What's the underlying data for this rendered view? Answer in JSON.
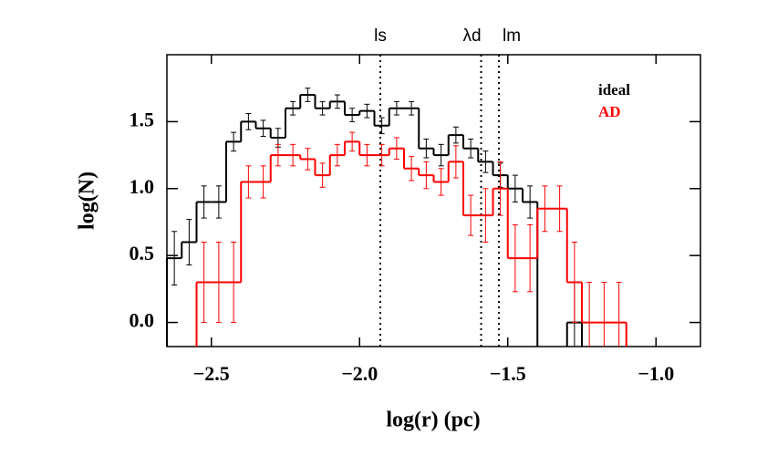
{
  "chart_data": {
    "type": "histogram",
    "xlabel": "log(r) (pc)",
    "ylabel": "log(N)",
    "bins": [
      -2.65,
      -2.6,
      -2.55,
      -2.5,
      -2.45,
      -2.4,
      -2.35,
      -2.3,
      -2.25,
      -2.2,
      -2.15,
      -2.1,
      -2.05,
      -2.0,
      -1.95,
      -1.9,
      -1.85,
      -1.8,
      -1.75,
      -1.7,
      -1.65,
      -1.6,
      -1.55,
      -1.5,
      -1.45,
      -1.4,
      -1.35,
      -1.3,
      -1.25,
      -1.2,
      -1.15,
      -1.1
    ],
    "series": [
      {
        "name": "ideal",
        "color": "#000000",
        "values": [
          0.48,
          0.6,
          0.9,
          0.9,
          1.35,
          1.5,
          1.45,
          1.38,
          1.6,
          1.7,
          1.6,
          1.65,
          1.55,
          1.58,
          1.47,
          1.6,
          1.6,
          1.3,
          1.25,
          1.4,
          1.3,
          1.2,
          1.1,
          1.0,
          0.9,
          null,
          null,
          0.0,
          null,
          null,
          null
        ],
        "errors": [
          0.2,
          0.17,
          0.12,
          0.12,
          0.07,
          0.06,
          0.06,
          0.07,
          0.05,
          0.05,
          0.05,
          0.05,
          0.05,
          0.05,
          0.06,
          0.05,
          0.05,
          0.07,
          0.08,
          0.06,
          0.07,
          0.08,
          0.09,
          0.1,
          0.12,
          null,
          null,
          0.3,
          null,
          null,
          null
        ]
      },
      {
        "name": "AD",
        "color": "#ff0000",
        "values": [
          null,
          null,
          0.3,
          0.3,
          0.3,
          1.05,
          1.05,
          1.25,
          1.25,
          1.22,
          1.1,
          1.25,
          1.35,
          1.25,
          1.25,
          1.3,
          1.15,
          1.1,
          1.05,
          1.2,
          0.8,
          0.8,
          1.0,
          0.48,
          0.48,
          0.85,
          0.85,
          0.3,
          0.0,
          0.0,
          0.0
        ],
        "errors": [
          null,
          null,
          0.3,
          0.3,
          0.3,
          0.12,
          0.12,
          0.08,
          0.08,
          0.08,
          0.09,
          0.08,
          0.07,
          0.08,
          0.08,
          0.08,
          0.09,
          0.1,
          0.1,
          0.12,
          0.15,
          0.2,
          0.2,
          0.25,
          0.25,
          0.17,
          0.17,
          0.3,
          0.3,
          0.3,
          0.3
        ]
      }
    ],
    "annotations": [
      {
        "label": "ls",
        "x": -1.93
      },
      {
        "label": "λd",
        "x": -1.59
      },
      {
        "label": "lm",
        "x": -1.53
      }
    ],
    "xlim": [
      -2.65,
      -0.85
    ],
    "ylim": [
      -0.18,
      2.0
    ],
    "xticks": [
      {
        "value": -2.5,
        "label": "−2.5"
      },
      {
        "value": -2.0,
        "label": "−2.0"
      },
      {
        "value": -1.5,
        "label": "−1.5"
      },
      {
        "value": -1.0,
        "label": "−1.0"
      }
    ],
    "yticks": [
      {
        "value": 0.0,
        "label": "0.0"
      },
      0.5,
      {
        "value": 1.0,
        "label": "1.0"
      },
      1.5
    ],
    "legend": "upper right"
  }
}
